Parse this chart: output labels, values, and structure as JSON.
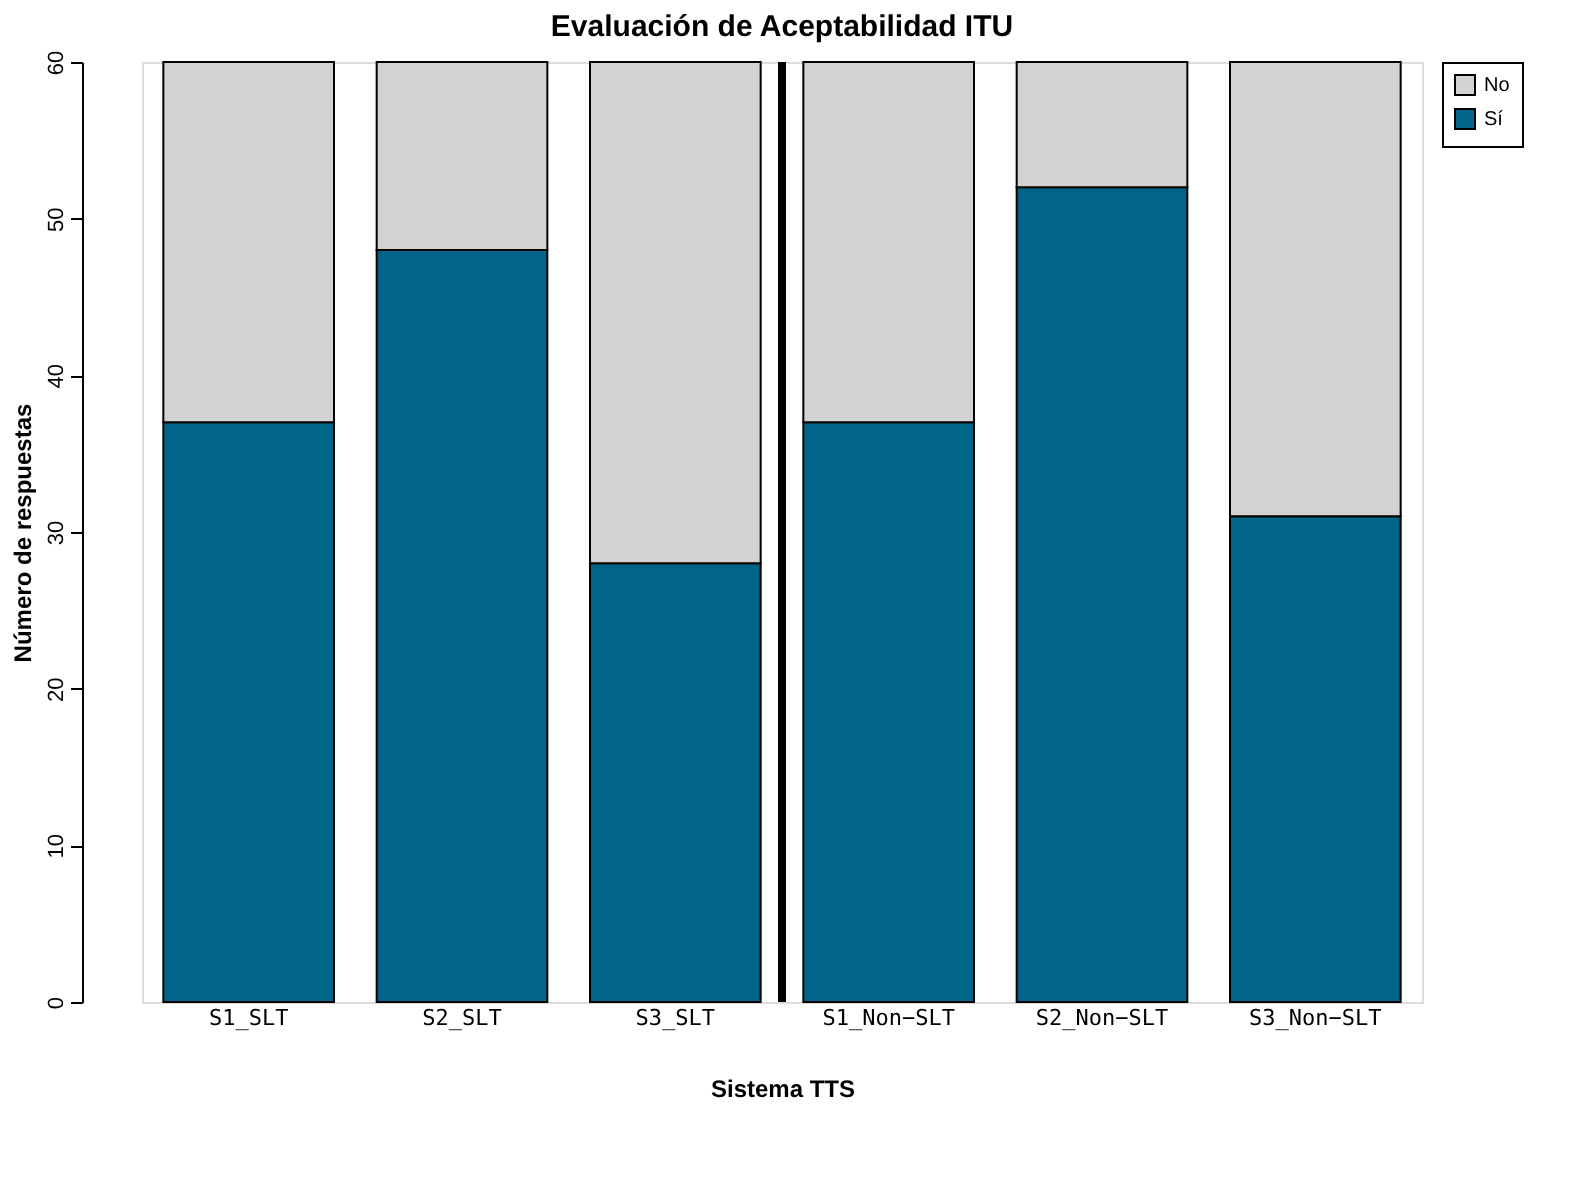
{
  "chart_data": {
    "type": "bar",
    "title": "Evaluación de Aceptabilidad ITU",
    "xlabel": "Sistema TTS",
    "ylabel": "Número de respuestas",
    "categories": [
      "S1_SLT",
      "S2_SLT",
      "S3_SLT",
      "S1_Non−SLT",
      "S2_Non−SLT",
      "S3_Non−SLT"
    ],
    "series": [
      {
        "name": "Sí",
        "color": "#006589",
        "values": [
          37,
          48,
          28,
          37,
          52,
          31
        ]
      },
      {
        "name": "No",
        "color": "#d3d3d3",
        "values": [
          23,
          12,
          32,
          23,
          8,
          29
        ]
      }
    ],
    "stacked": true,
    "ylim": [
      0,
      60
    ],
    "yticks": [
      0,
      10,
      20,
      30,
      40,
      50,
      60
    ],
    "grid": false,
    "legend": "top right"
  }
}
